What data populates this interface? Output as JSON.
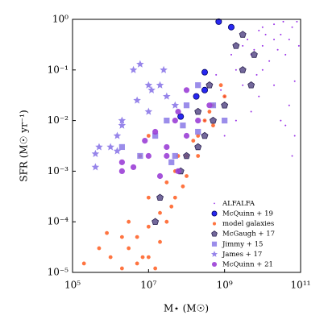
{
  "chart_data": {
    "type": "scatter",
    "xlabel": "M⋆ (M☉)",
    "ylabel": "SFR (M☉ yr⁻¹)",
    "xscale": "log",
    "yscale": "log",
    "xlim": [
      100000,
      100000000000
    ],
    "ylim": [
      1e-05,
      1
    ],
    "xticks": [
      {
        "value": 100000,
        "label": "10⁵"
      },
      {
        "value": 10000000,
        "label": "10⁷"
      },
      {
        "value": 1000000000,
        "label": "10⁹"
      },
      {
        "value": 100000000000,
        "label": "10¹¹"
      }
    ],
    "yticks": [
      {
        "value": 1e-05,
        "label": "10⁻⁵"
      },
      {
        "value": 0.0001,
        "label": "10⁻⁴"
      },
      {
        "value": 0.001,
        "label": "10⁻³"
      },
      {
        "value": 0.01,
        "label": "10⁻²"
      },
      {
        "value": 0.1,
        "label": "10⁻¹"
      },
      {
        "value": 1,
        "label": "10⁰"
      }
    ],
    "legend": "lower right",
    "series": [
      {
        "name": "ALFALFA",
        "color": "#9932e8",
        "marker": "dot",
        "x": [
          2000000000.0,
          5000000000.0,
          10000000000.0,
          30000000000.0,
          50000000000.0,
          10000000000.0,
          3000000000.0,
          1000000000.0,
          500000000.0,
          8000000000.0,
          20000000000.0,
          60000000000.0,
          80000000000.0,
          40000000000.0,
          20000000000.0,
          50000000000.0,
          30000000000.0,
          70000000000.0,
          60000000000.0,
          40000000000.0,
          15000000000.0,
          7000000000.0,
          3000000000.0,
          1500000000.0,
          600000000.0,
          2000000000.0,
          1000000000.0,
          8000000000.0,
          90000000000.0,
          25000000000.0,
          4000000000.0,
          12000000000.0,
          300000000.0,
          5000000000.0,
          70000000000.0,
          20000000000.0,
          10000000000.0,
          35000000000.0,
          6000000000.0,
          800000000.0
        ],
        "y": [
          0.1,
          0.2,
          0.3,
          0.5,
          0.4,
          0.1,
          0.05,
          0.03,
          0.02,
          0.6,
          0.8,
          0.7,
          0.9,
          0.2,
          0.05,
          0.02,
          0.01,
          0.005,
          0.002,
          0.008,
          0.15,
          0.08,
          0.3,
          0.2,
          0.08,
          0.01,
          0.005,
          0.03,
          0.3,
          0.25,
          0.4,
          0.5,
          0.01,
          0.015,
          0.06,
          0.4,
          0.7,
          0.9,
          0.25,
          0.04
        ]
      },
      {
        "name": "McQuinn + 19",
        "color": "#1010ee",
        "edgecolor": "#000066",
        "marker": "circle",
        "x": [
          700000000.0,
          1500000000.0,
          300000000.0,
          70000000.0,
          180000000.0,
          300000000.0
        ],
        "y": [
          0.9,
          0.7,
          0.04,
          0.012,
          0.03,
          0.09
        ]
      },
      {
        "name": "model galaxies",
        "color": "#ff4500",
        "marker": "disc",
        "x": [
          200000.0,
          500000.0,
          1000000.0,
          2000000.0,
          3000000.0,
          5000000.0,
          5000000.0,
          10000000.0,
          10000000.0,
          20000000.0,
          20000000.0,
          30000000.0,
          50000000.0,
          50000000.0,
          80000000.0,
          100000000.0,
          100000000.0,
          200000000.0,
          200000000.0,
          300000000.0,
          500000000.0,
          500000000.0,
          800000000.0,
          1000000000.0,
          3000000.0,
          10000000.0,
          2000000.0,
          7000000.0,
          15000000.0,
          40000000.0,
          30000000.0,
          60000000.0,
          150000000.0,
          400000000.0,
          800000.0,
          6000000.0,
          10000000.0
        ],
        "y": [
          1.5e-05,
          3e-05,
          2e-05,
          1.2e-05,
          3e-05,
          1.5e-05,
          5e-05,
          2e-05,
          8e-05,
          4e-05,
          0.00015,
          0.0001,
          0.0003,
          0.001,
          0.0005,
          0.002,
          0.0008,
          0.005,
          0.002,
          0.01,
          0.02,
          0.008,
          0.05,
          0.03,
          0.0001,
          0.0003,
          5e-05,
          2e-05,
          1.2e-05,
          0.0002,
          0.0006,
          0.002,
          0.004,
          0.015,
          6e-05,
          0.002,
          0.005
        ]
      },
      {
        "name": "McGaugh + 17",
        "color": "#5b4d8a",
        "edgecolor": "#2a2050",
        "marker": "pentagon",
        "x": [
          3000000000.0,
          5000000000.0,
          2000000000.0,
          1000000000.0,
          500000000.0,
          300000000.0,
          200000000.0,
          100000000.0,
          20000000.0,
          15000000.0,
          3000000000.0,
          6000000000.0,
          400000000.0,
          200000000.0,
          70000000.0
        ],
        "y": [
          0.1,
          0.05,
          0.3,
          0.02,
          0.01,
          0.005,
          0.003,
          0.002,
          0.0003,
          0.0001,
          0.5,
          0.2,
          0.05,
          0.015,
          0.001
        ]
      },
      {
        "name": "Jimmy + 15",
        "color": "#8a79e6",
        "marker": "square",
        "x": [
          200000000.0,
          50000000.0,
          6000000.0,
          15000000.0,
          30000000.0,
          100000000.0,
          500000000.0,
          80000000.0,
          2000000.0,
          40000000.0,
          1000000000.0,
          200000000.0
        ],
        "y": [
          0.05,
          0.002,
          0.002,
          0.005,
          0.01,
          0.02,
          0.02,
          0.008,
          0.003,
          0.0015,
          0.01,
          0.006
        ]
      },
      {
        "name": "James + 17",
        "color": "#8c78e8",
        "marker": "star",
        "x": [
          400000.0,
          500000.0,
          1000000.0,
          1500000.0,
          400000.0,
          2000000.0,
          5000000.0,
          2000000.0,
          10000000.0,
          12000000.0,
          20000000.0,
          25000000.0,
          6000000.0,
          30000000.0,
          10000000.0,
          4000000.0,
          50000000.0,
          1500000.0
        ],
        "y": [
          0.0022,
          0.003,
          0.003,
          0.0025,
          0.0012,
          0.01,
          0.025,
          0.008,
          0.015,
          0.04,
          0.05,
          0.1,
          0.13,
          0.03,
          0.05,
          0.1,
          0.02,
          0.005
        ]
      },
      {
        "name": "McQuinn + 21",
        "color": "#9b3fd6",
        "marker": "circle",
        "x": [
          2000000.0,
          4000000.0,
          10000000.0,
          20000000.0,
          30000000.0,
          60000000.0,
          100000000.0,
          50000000.0,
          30000000.0,
          200000000.0,
          400000000.0,
          100000000.0,
          60000000.0,
          8000000.0,
          15000000.0,
          2000000.0
        ],
        "y": [
          0.001,
          0.0012,
          0.002,
          0.0008,
          0.002,
          0.001,
          0.005,
          0.01,
          0.003,
          0.01,
          0.02,
          0.04,
          0.015,
          0.004,
          0.006,
          0.0015
        ]
      }
    ]
  }
}
